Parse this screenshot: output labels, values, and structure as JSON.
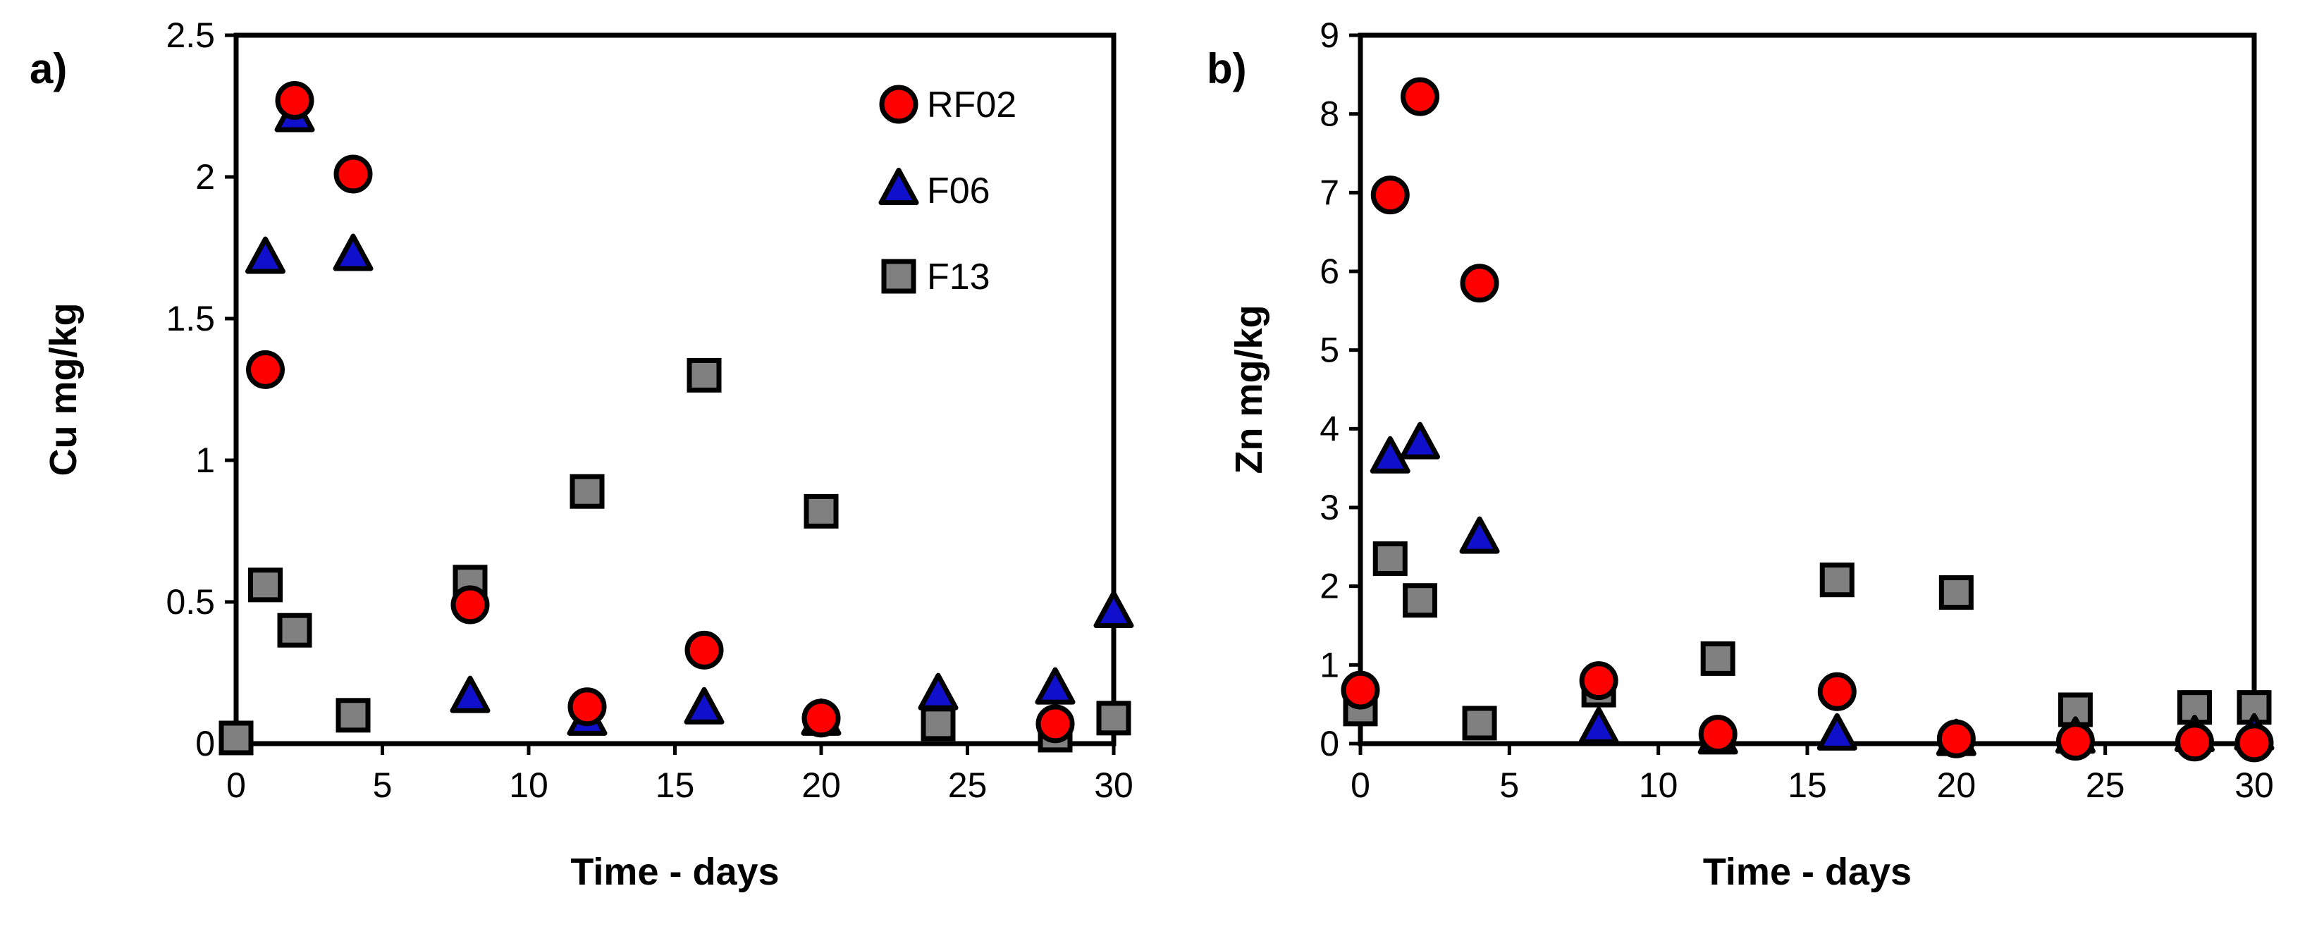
{
  "chart_data": [
    {
      "type": "scatter",
      "panel_label": "a)",
      "title": "",
      "xlabel": "Time - days",
      "ylabel": "Cu mg/kg",
      "xlim": [
        0,
        30
      ],
      "ylim": [
        0,
        2.5
      ],
      "xticks": [
        0,
        5,
        10,
        15,
        20,
        25,
        30
      ],
      "xtick_labels": [
        "0",
        "5",
        "10",
        "15",
        "20",
        "25",
        "30"
      ],
      "yticks": [
        0,
        0.5,
        1,
        1.5,
        2,
        2.5
      ],
      "ytick_labels": [
        "0",
        "0.5",
        "1",
        "1.5",
        "2",
        "2.5"
      ],
      "grid": false,
      "legend": "top-right",
      "series": [
        {
          "name": "RF02",
          "marker": "circle",
          "color": "#ff0000",
          "x": [
            1,
            2,
            4,
            8,
            12,
            16,
            20,
            28
          ],
          "y": [
            1.32,
            2.27,
            2.01,
            0.49,
            0.13,
            0.33,
            0.09,
            0.07
          ]
        },
        {
          "name": "F06",
          "marker": "triangle",
          "color": "#1010cc",
          "x": [
            1,
            2,
            4,
            8,
            12,
            16,
            20,
            24,
            28,
            30
          ],
          "y": [
            1.71,
            2.21,
            1.72,
            0.16,
            0.08,
            0.12,
            0.08,
            0.17,
            0.19,
            0.46
          ]
        },
        {
          "name": "F13",
          "marker": "square",
          "color": "#808080",
          "x": [
            0,
            1,
            2,
            4,
            8,
            12,
            16,
            20,
            24,
            28,
            30
          ],
          "y": [
            0.02,
            0.56,
            0.4,
            0.1,
            0.57,
            0.89,
            1.3,
            0.82,
            0.07,
            0.03,
            0.09
          ]
        }
      ]
    },
    {
      "type": "scatter",
      "panel_label": "b)",
      "title": "",
      "xlabel": "Time - days",
      "ylabel": "Zn mg/kg",
      "xlim": [
        0,
        30
      ],
      "ylim": [
        0,
        9
      ],
      "xticks": [
        0,
        5,
        10,
        15,
        20,
        25,
        30
      ],
      "xtick_labels": [
        "0",
        "5",
        "10",
        "15",
        "20",
        "25",
        "30"
      ],
      "yticks": [
        0,
        1,
        2,
        3,
        4,
        5,
        6,
        7,
        8,
        9
      ],
      "ytick_labels": [
        "0",
        "1",
        "2",
        "3",
        "4",
        "5",
        "6",
        "7",
        "8",
        "9"
      ],
      "grid": false,
      "legend": "none",
      "series": [
        {
          "name": "RF02",
          "marker": "circle",
          "color": "#ff0000",
          "x": [
            0,
            1,
            2,
            4,
            8,
            12,
            16,
            20,
            24,
            28,
            30
          ],
          "y": [
            0.68,
            6.97,
            8.22,
            5.85,
            0.8,
            0.12,
            0.66,
            0.06,
            0.03,
            0.02,
            0.01
          ]
        },
        {
          "name": "F06",
          "marker": "triangle",
          "color": "#1010cc",
          "x": [
            1,
            2,
            4,
            8,
            12,
            16,
            20,
            24,
            28,
            30
          ],
          "y": [
            3.62,
            3.8,
            2.6,
            0.18,
            0.05,
            0.1,
            0.03,
            0.06,
            0.08,
            0.1
          ]
        },
        {
          "name": "F13",
          "marker": "square",
          "color": "#808080",
          "x": [
            0,
            1,
            2,
            4,
            8,
            12,
            16,
            20,
            24,
            28,
            30
          ],
          "y": [
            0.44,
            2.35,
            1.82,
            0.26,
            0.68,
            1.08,
            2.08,
            1.92,
            0.43,
            0.46,
            0.46
          ]
        }
      ]
    }
  ]
}
